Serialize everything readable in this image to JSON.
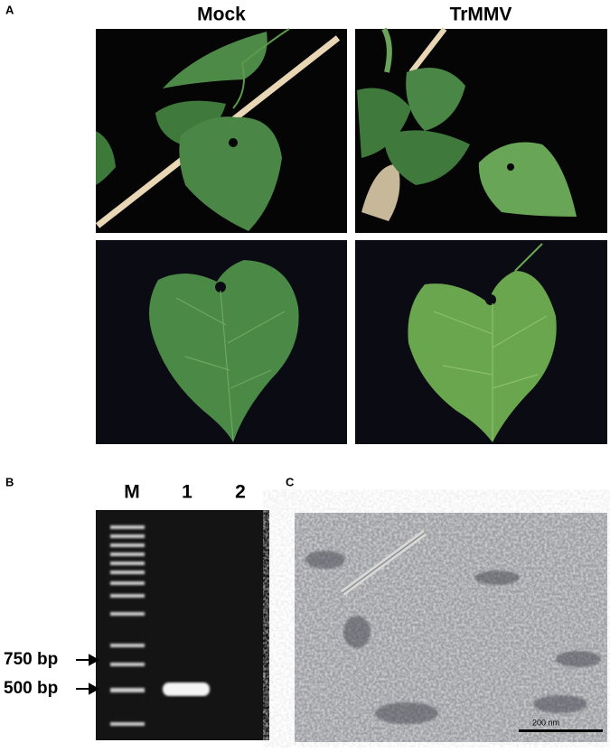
{
  "panel_a": {
    "label": "A",
    "columns": [
      "Mock",
      "TrMMV"
    ]
  },
  "panel_b": {
    "label": "B",
    "lanes": [
      "M",
      "1",
      "2"
    ],
    "markers": [
      "750 bp",
      "500 bp"
    ]
  },
  "panel_c": {
    "label": "C",
    "scale_bar": "200 nm"
  }
}
